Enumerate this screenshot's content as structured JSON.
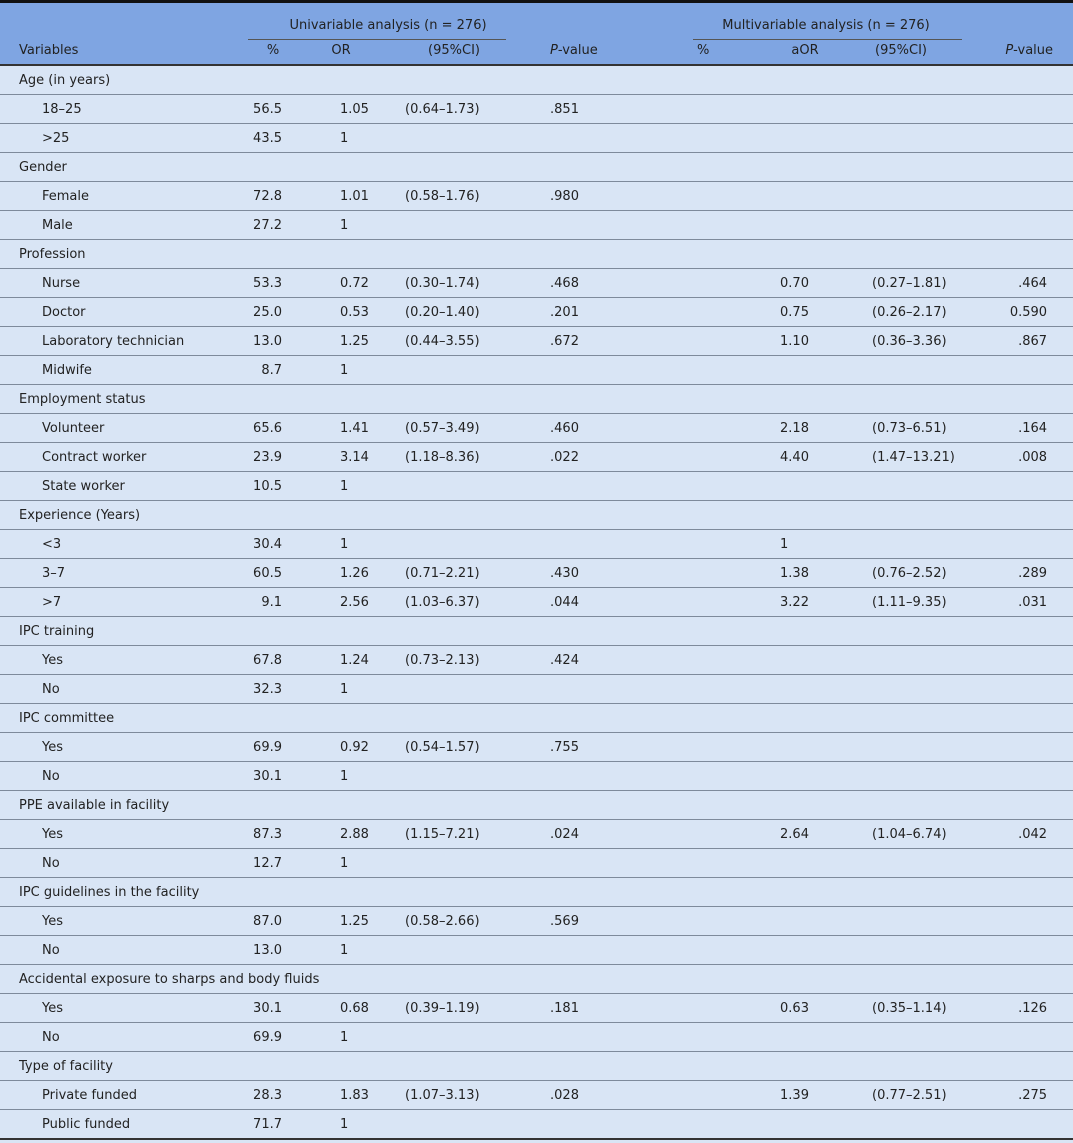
{
  "header": {
    "uni_title": "Univariable analysis (n = 276)",
    "multi_title": "Multivariable analysis (n = 276)",
    "cols": {
      "variables": "Variables",
      "pct": "%",
      "or": "OR",
      "ci": "(95%CI)",
      "p_italic": "P",
      "p_rest": "-value",
      "mpct": "%",
      "aor": "aOR",
      "mci": "(95%CI)"
    }
  },
  "rows": [
    {
      "type": "group",
      "label": "Age (in years)"
    },
    {
      "type": "sub",
      "label": "18–25",
      "pct": "56.5",
      "or": "1.05",
      "ci": "(0.64–1.73)",
      "p": ".851"
    },
    {
      "type": "sub",
      "label": ">25",
      "pct": "43.5",
      "or": "1"
    },
    {
      "type": "group",
      "label": "Gender"
    },
    {
      "type": "sub",
      "label": "Female",
      "pct": "72.8",
      "or": "1.01",
      "ci": "(0.58–1.76)",
      "p": ".980"
    },
    {
      "type": "sub",
      "label": "Male",
      "pct": "27.2",
      "or": "1"
    },
    {
      "type": "group",
      "label": "Profession"
    },
    {
      "type": "sub",
      "label": "Nurse",
      "pct": "53.3",
      "or": "0.72",
      "ci": "(0.30–1.74)",
      "p": ".468",
      "aor": "0.70",
      "aci": "(0.27–1.81)",
      "ap": ".464"
    },
    {
      "type": "sub",
      "label": "Doctor",
      "pct": "25.0",
      "or": "0.53",
      "ci": "(0.20–1.40)",
      "p": ".201",
      "aor": "0.75",
      "aci": "(0.26–2.17)",
      "ap": "0.590"
    },
    {
      "type": "sub",
      "label": "Laboratory technician",
      "pct": "13.0",
      "or": "1.25",
      "ci": "(0.44–3.55)",
      "p": ".672",
      "aor": "1.10",
      "aci": "(0.36–3.36)",
      "ap": ".867"
    },
    {
      "type": "sub",
      "label": "Midwife",
      "pct": "8.7",
      "or": "1"
    },
    {
      "type": "group",
      "label": "Employment status"
    },
    {
      "type": "sub",
      "label": "Volunteer",
      "pct": "65.6",
      "or": "1.41",
      "ci": "(0.57–3.49)",
      "p": ".460",
      "aor": "2.18",
      "aci": "(0.73–6.51)",
      "ap": ".164"
    },
    {
      "type": "sub",
      "label": "Contract worker",
      "pct": "23.9",
      "or": "3.14",
      "ci": "(1.18–8.36)",
      "p": ".022",
      "aor": "4.40",
      "aci": "(1.47–13.21)",
      "ap": ".008"
    },
    {
      "type": "sub",
      "label": "State worker",
      "pct": "10.5",
      "or": "1"
    },
    {
      "type": "group",
      "label": "Experience (Years)"
    },
    {
      "type": "sub",
      "label": "<3",
      "pct": "30.4",
      "or": "1",
      "aor": "1"
    },
    {
      "type": "sub",
      "label": "3–7",
      "pct": "60.5",
      "or": "1.26",
      "ci": "(0.71–2.21)",
      "p": ".430",
      "aor": "1.38",
      "aci": "(0.76–2.52)",
      "ap": ".289"
    },
    {
      "type": "sub",
      "label": ">7",
      "pct": "9.1",
      "or": "2.56",
      "ci": "(1.03–6.37)",
      "p": ".044",
      "aor": "3.22",
      "aci": "(1.11–9.35)",
      "ap": ".031"
    },
    {
      "type": "group",
      "label": "IPC training"
    },
    {
      "type": "sub",
      "label": "Yes",
      "pct": "67.8",
      "or": "1.24",
      "ci": "(0.73–2.13)",
      "p": ".424"
    },
    {
      "type": "sub",
      "label": "No",
      "pct": "32.3",
      "or": "1"
    },
    {
      "type": "group",
      "label": "IPC committee"
    },
    {
      "type": "sub",
      "label": "Yes",
      "pct": "69.9",
      "or": "0.92",
      "ci": "(0.54–1.57)",
      "p": ".755"
    },
    {
      "type": "sub",
      "label": "No",
      "pct": "30.1",
      "or": "1"
    },
    {
      "type": "group",
      "label": "PPE available in facility"
    },
    {
      "type": "sub",
      "label": "Yes",
      "pct": "87.3",
      "or": "2.88",
      "ci": "(1.15–7.21)",
      "p": ".024",
      "aor": "2.64",
      "aci": "(1.04–6.74)",
      "ap": ".042"
    },
    {
      "type": "sub",
      "label": "No",
      "pct": "12.7",
      "or": "1"
    },
    {
      "type": "group",
      "label": "IPC guidelines in the facility"
    },
    {
      "type": "sub",
      "label": "Yes",
      "pct": "87.0",
      "or": "1.25",
      "ci": "(0.58–2.66)",
      "p": ".569"
    },
    {
      "type": "sub",
      "label": "No",
      "pct": "13.0",
      "or": "1"
    },
    {
      "type": "group",
      "label": "Accidental exposure to sharps and body fluids"
    },
    {
      "type": "sub",
      "label": "Yes",
      "pct": "30.1",
      "or": "0.68",
      "ci": "(0.39–1.19)",
      "p": ".181",
      "aor": "0.63",
      "aci": "(0.35–1.14)",
      "ap": ".126"
    },
    {
      "type": "sub",
      "label": "No",
      "pct": "69.9",
      "or": "1"
    },
    {
      "type": "group",
      "label": "Type of facility"
    },
    {
      "type": "sub",
      "label": "Private funded",
      "pct": "28.3",
      "or": "1.83",
      "ci": "(1.07–3.13)",
      "p": ".028",
      "aor": "1.39",
      "aci": "(0.77–2.51)",
      "ap": ".275"
    },
    {
      "type": "sub",
      "label": "Public funded",
      "pct": "71.7",
      "or": "1"
    }
  ]
}
